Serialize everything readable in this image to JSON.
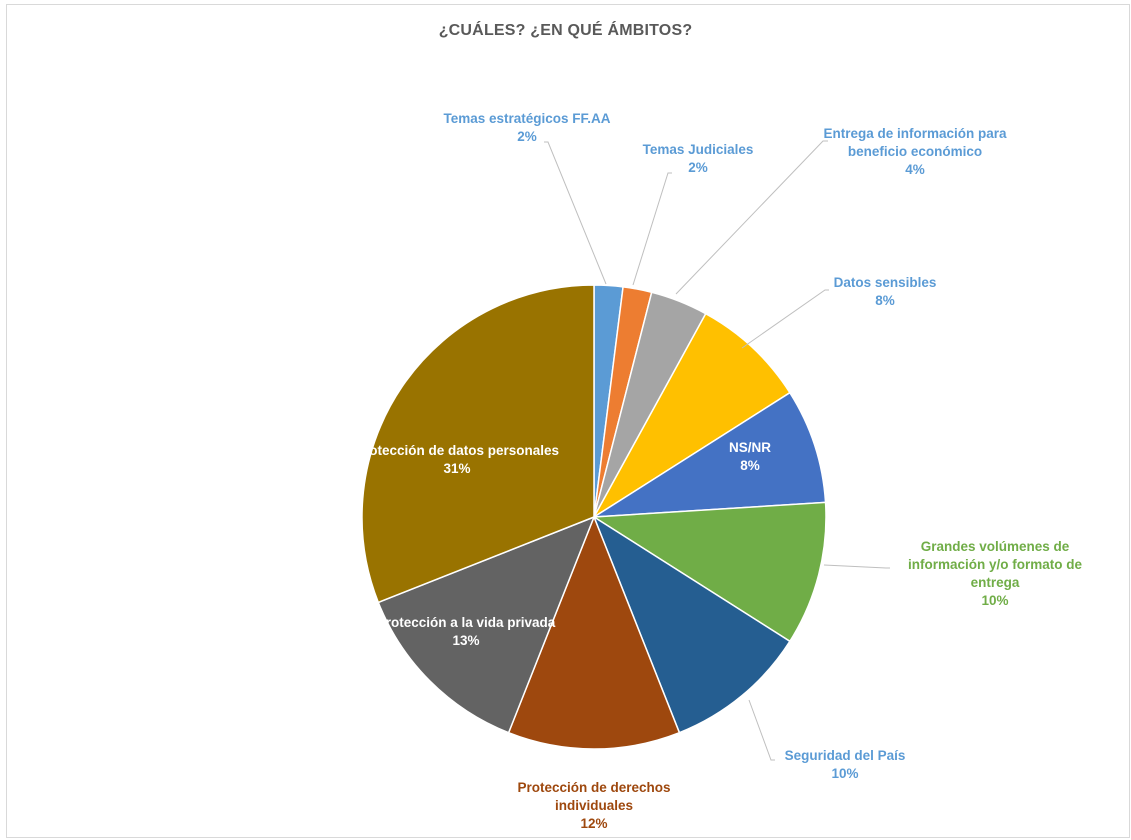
{
  "chart_data": {
    "type": "pie",
    "title": "¿CUÁLES? ¿EN QUÉ ÁMBITOS?",
    "slices": [
      {
        "name": "Temas estratégicos FF.AA",
        "value": 2,
        "label": "2%",
        "color": "#5b9bd5",
        "label_color": "#5b9bd5"
      },
      {
        "name": "Temas Judiciales",
        "value": 2,
        "label": "2%",
        "color": "#ed7d31",
        "label_color": "#5b9bd5"
      },
      {
        "name": "Entrega de información para beneficio económico",
        "value": 4,
        "label": "4%",
        "color": "#a5a5a5",
        "label_color": "#5b9bd5"
      },
      {
        "name": "Datos sensibles",
        "value": 8,
        "label": "8%",
        "color": "#ffc000",
        "label_color": "#5b9bd5"
      },
      {
        "name": "NS/NR",
        "value": 8,
        "label": "8%",
        "color": "#4472c4",
        "label_color": "#ffffff"
      },
      {
        "name": "Grandes volúmenes de información y/o formato de entrega",
        "value": 10,
        "label": "10%",
        "color": "#70ad47",
        "label_color": "#70ad47"
      },
      {
        "name": "Seguridad del País",
        "value": 10,
        "label": "10%",
        "color": "#255e91",
        "label_color": "#5b9bd5"
      },
      {
        "name": "Protección de derechos individuales",
        "value": 12,
        "label": "12%",
        "color": "#9e480e",
        "label_color": "#9e480e"
      },
      {
        "name": "Protección a la vida privada",
        "value": 13,
        "label": "13%",
        "color": "#636363",
        "label_color": "#ffffff"
      },
      {
        "name": "Protección de datos personales",
        "value": 31,
        "label": "31%",
        "color": "#997300",
        "label_color": "#ffffff"
      }
    ],
    "legend": "none"
  }
}
